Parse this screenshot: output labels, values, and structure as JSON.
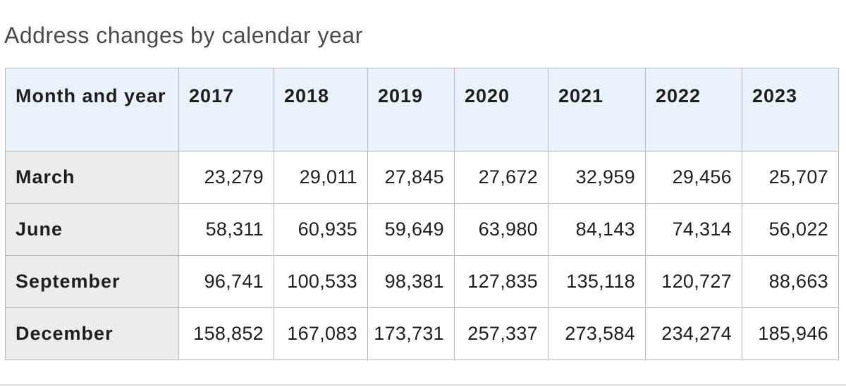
{
  "title": "Address changes by calendar year",
  "table": {
    "columns": [
      "Month and year",
      "2017",
      "2018",
      "2019",
      "2020",
      "2021",
      "2022",
      "2023"
    ],
    "rows": [
      {
        "label": "March",
        "values": [
          "23,279",
          "29,011",
          "27,845",
          "27,672",
          "32,959",
          "29,456",
          "25,707"
        ]
      },
      {
        "label": "June",
        "values": [
          "58,311",
          "60,935",
          "59,649",
          "63,980",
          "84,143",
          "74,314",
          "56,022"
        ]
      },
      {
        "label": "September",
        "values": [
          "96,741",
          "100,533",
          "98,381",
          "127,835",
          "135,118",
          "120,727",
          "88,663"
        ]
      },
      {
        "label": "December",
        "values": [
          "158,852",
          "167,083",
          "173,731",
          "257,337",
          "273,584",
          "234,274",
          "185,946"
        ]
      }
    ]
  },
  "chart_data": {
    "type": "table",
    "title": "Address changes by calendar year",
    "categories": [
      "March",
      "June",
      "September",
      "December"
    ],
    "series": [
      {
        "name": "2017",
        "values": [
          23279,
          58311,
          96741,
          158852
        ]
      },
      {
        "name": "2018",
        "values": [
          29011,
          60935,
          100533,
          167083
        ]
      },
      {
        "name": "2019",
        "values": [
          27845,
          59649,
          98381,
          173731
        ]
      },
      {
        "name": "2020",
        "values": [
          27672,
          63980,
          127835,
          257337
        ]
      },
      {
        "name": "2021",
        "values": [
          32959,
          84143,
          135118,
          273584
        ]
      },
      {
        "name": "2022",
        "values": [
          29456,
          74314,
          120727,
          234274
        ]
      },
      {
        "name": "2023",
        "values": [
          25707,
          56022,
          88663,
          185946
        ]
      }
    ]
  }
}
